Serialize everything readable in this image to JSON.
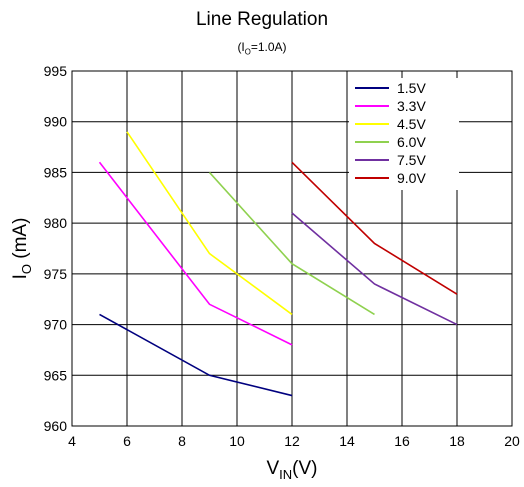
{
  "chart_data": {
    "type": "line",
    "title": "Line Regulation",
    "subtitle": {
      "main": "(I",
      "sub": "O",
      "rest": "=1.0A)"
    },
    "xlabel": {
      "main": "V",
      "sub": "IN",
      "rest": "(V)"
    },
    "ylabel": {
      "main": "I",
      "sub": "O",
      "rest": " (mA)"
    },
    "xlim": [
      4,
      20
    ],
    "ylim": [
      960,
      995
    ],
    "xticks": [
      4,
      6,
      8,
      10,
      12,
      14,
      16,
      18,
      20
    ],
    "yticks": [
      960,
      965,
      970,
      975,
      980,
      985,
      990,
      995
    ],
    "grid": true,
    "legend_position": "top-right",
    "series": [
      {
        "name": "1.5V",
        "color": "#00007f",
        "x": [
          5,
          9,
          12
        ],
        "y": [
          971,
          965,
          963
        ]
      },
      {
        "name": "3.3V",
        "color": "#ff00ff",
        "x": [
          5,
          9,
          12
        ],
        "y": [
          986,
          972,
          968
        ]
      },
      {
        "name": "4.5V",
        "color": "#ffff00",
        "x": [
          6,
          9,
          12
        ],
        "y": [
          989,
          977,
          971
        ]
      },
      {
        "name": "6.0V",
        "color": "#8fd14f",
        "x": [
          9,
          12,
          15
        ],
        "y": [
          985,
          976,
          971
        ]
      },
      {
        "name": "7.5V",
        "color": "#7030a0",
        "x": [
          12,
          15,
          18
        ],
        "y": [
          981,
          974,
          970
        ]
      },
      {
        "name": "9.0V",
        "color": "#c00000",
        "x": [
          12,
          15,
          18
        ],
        "y": [
          986,
          978,
          973
        ]
      }
    ]
  }
}
